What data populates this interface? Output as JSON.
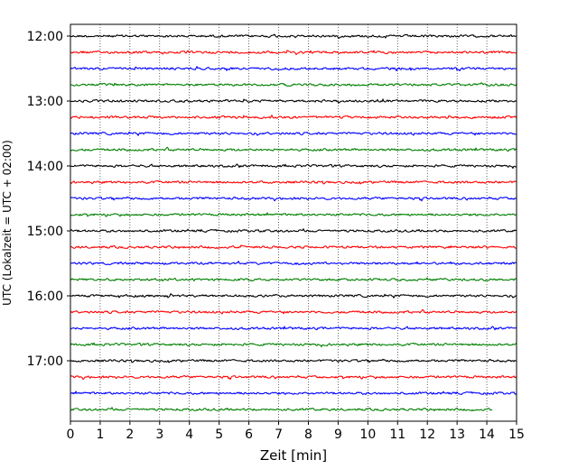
{
  "chart_data": {
    "type": "line",
    "title": "",
    "xlabel": "Zeit  [min]",
    "ylabel": "UTC (Lokalzeit = UTC + 02:00)",
    "xlim": [
      0,
      15
    ],
    "x_ticks": [
      "0",
      "1",
      "2",
      "3",
      "4",
      "5",
      "6",
      "7",
      "8",
      "9",
      "10",
      "11",
      "12",
      "13",
      "14",
      "15"
    ],
    "y_tick_labels": [
      "12:00",
      "13:00",
      "14:00",
      "15:00",
      "16:00",
      "17:00"
    ],
    "y_ticks_hours": [
      12,
      13,
      14,
      15,
      16,
      17
    ],
    "start_hour": 12,
    "trace_minutes": 15,
    "trace_count": 24,
    "last_trace_end_min": 14.2,
    "grid": "vertical dotted at each minute",
    "color_cycle": [
      "#000000",
      "#ff0000",
      "#0000ff",
      "#008000"
    ]
  }
}
